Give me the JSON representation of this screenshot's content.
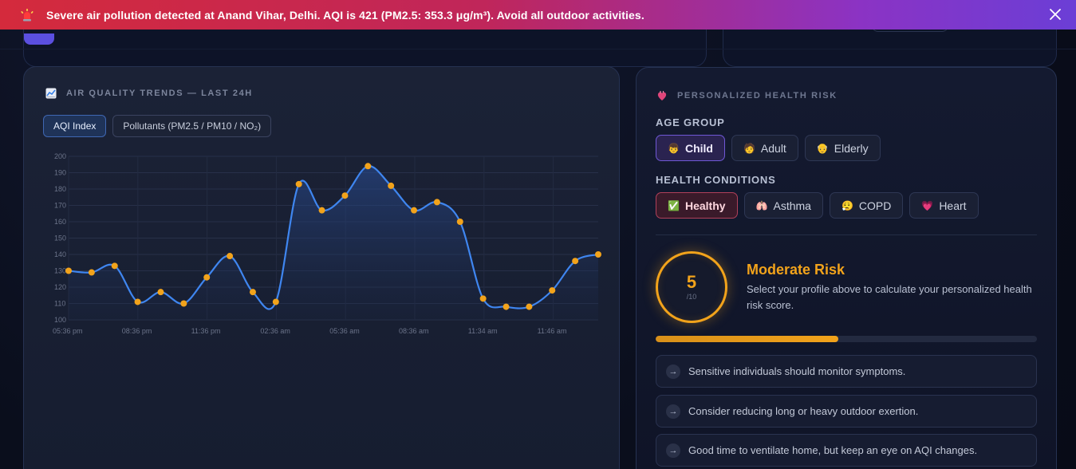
{
  "alert": {
    "message": "Severe air pollution detected at Anand Vihar, Delhi. AQI is 421 (PM2.5: 353.3 μg/m³). Avoid all outdoor activities.",
    "icon": "siren-icon",
    "close_icon": "close-icon"
  },
  "trends": {
    "title": "AIR QUALITY TRENDS — LAST 24H",
    "icon": "chart-icon",
    "tabs": [
      {
        "label": "AQI Index",
        "active": true
      },
      {
        "label": "Pollutants (PM2.5 / PM10 / NO₂)",
        "active": false
      }
    ]
  },
  "chart_data": {
    "type": "area",
    "title": "",
    "xlabel": "",
    "ylabel": "",
    "ylim": [
      100,
      200
    ],
    "yticks": [
      200,
      190,
      180,
      170,
      160,
      150,
      140,
      130,
      120,
      110,
      100
    ],
    "xtick_labels": [
      "05:36 pm",
      "08:36 pm",
      "11:36 pm",
      "02:36 am",
      "05:36 am",
      "08:36 am",
      "11:34 am",
      "11:46 am"
    ],
    "values": [
      130,
      129,
      133,
      111,
      117,
      110,
      126,
      139,
      117,
      111,
      183,
      167,
      176,
      194,
      182,
      167,
      172,
      160,
      113,
      108,
      108,
      118,
      136,
      140
    ],
    "grid": true,
    "line_color": "#3f86f0",
    "point_color": "#f2a31b"
  },
  "risk": {
    "title": "PERSONALIZED HEALTH RISK",
    "icon": "heart-organ-icon",
    "age_label": "AGE GROUP",
    "age_options": [
      {
        "emoji": "👦",
        "label": "Child",
        "selected": true
      },
      {
        "emoji": "🧑",
        "label": "Adult",
        "selected": false
      },
      {
        "emoji": "👴",
        "label": "Elderly",
        "selected": false
      }
    ],
    "conditions_label": "HEALTH CONDITIONS",
    "conditions": [
      {
        "emoji": "✅",
        "label": "Healthy",
        "selected": true
      },
      {
        "emoji": "🫁",
        "label": "Asthma",
        "selected": false
      },
      {
        "emoji": "😮‍💨",
        "label": "COPD",
        "selected": false
      },
      {
        "emoji": "💗",
        "label": "Heart",
        "selected": false
      }
    ],
    "score": "5",
    "score_max": "/10",
    "level": "Moderate Risk",
    "description": "Select your profile above to calculate your personalized health risk score.",
    "progress_fraction": 0.48,
    "accent": "#f2a31b",
    "tips": [
      "Sensitive individuals should monitor symptoms.",
      "Consider reducing long or heavy outdoor exertion.",
      "Good time to ventilate home, but keep an eye on AQI changes."
    ]
  }
}
